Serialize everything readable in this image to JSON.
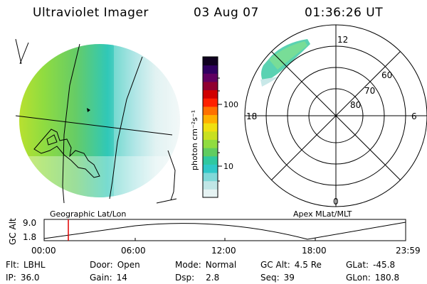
{
  "header": {
    "title": "Ultraviolet Imager",
    "date": "03 Aug 07",
    "time": "01:36:26 UT"
  },
  "left_panel": {
    "label": "Geographic Lat/Lon"
  },
  "right_panel": {
    "label": "Apex MLat/MLT",
    "lat_labels": [
      "60",
      "70",
      "80"
    ],
    "mlt_labels": {
      "top": "12",
      "left": "18",
      "right": "6",
      "bottom": "0"
    }
  },
  "colorbar": {
    "unit_label": "photon cm⁻²s⁻¹",
    "tick_labels": [
      "100",
      "10"
    ],
    "colors": [
      "#e6f3f3",
      "#c0e6e6",
      "#80d8d8",
      "#30c8c8",
      "#30c8a0",
      "#60cc60",
      "#90dc40",
      "#c8e020",
      "#f0e010",
      "#ffb000",
      "#ff7000",
      "#ff2000",
      "#d00000",
      "#900030",
      "#600060",
      "#300060",
      "#100020"
    ]
  },
  "altitude_plot": {
    "ylabel": "GC Alt",
    "yticks": [
      "9.0",
      "1.8"
    ],
    "xticks": [
      "00:00",
      "06:00",
      "12:00",
      "18:00",
      "23:59"
    ],
    "current_time_hours": 1.607
  },
  "info": {
    "flt": {
      "label": "Flt:",
      "value": "LBHL"
    },
    "ip": {
      "label": "IP:",
      "value": "36.0"
    },
    "door": {
      "label": "Door:",
      "value": "Open"
    },
    "gain": {
      "label": "Gain:",
      "value": "14"
    },
    "mode": {
      "label": "Mode:",
      "value": "Normal"
    },
    "dsp": {
      "label": "Dsp:",
      "value": "2.8"
    },
    "gcalt": {
      "label": "GC Alt:",
      "value": "4.5 Re"
    },
    "seq": {
      "label": "Seq:",
      "value": "39"
    },
    "glat": {
      "label": "GLat:",
      "value": "-45.8"
    },
    "glon": {
      "label": "GLon:",
      "value": "180.8"
    }
  }
}
